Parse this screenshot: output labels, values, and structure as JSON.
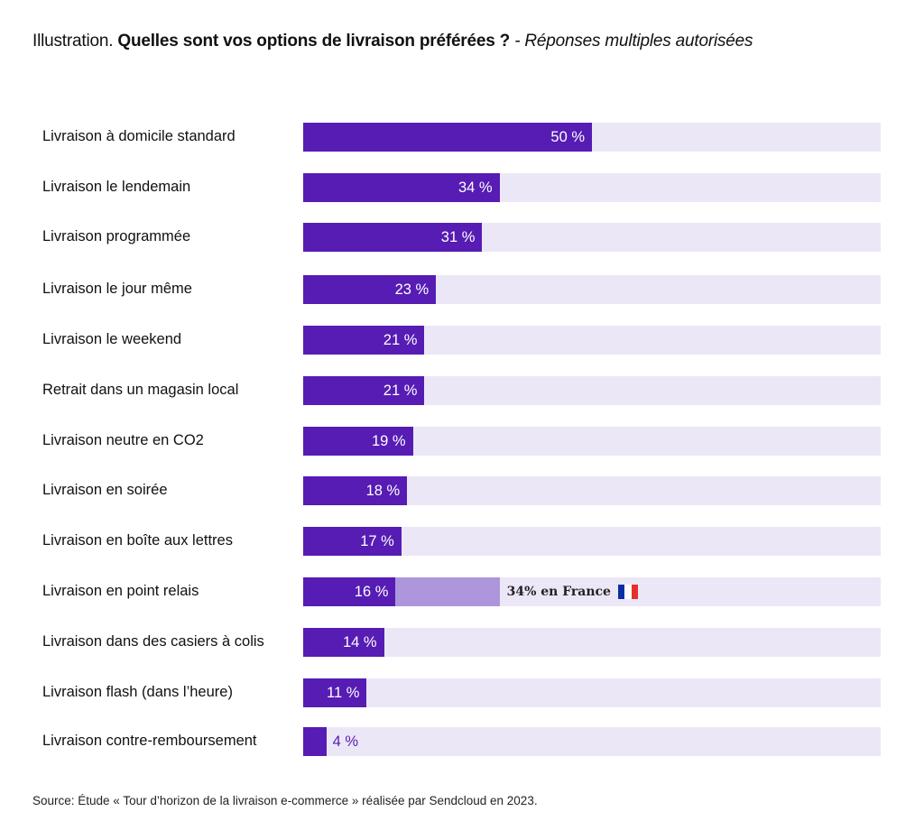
{
  "chart_data": {
    "type": "bar",
    "orientation": "horizontal",
    "title_prefix": "Illustration.",
    "title": "Quelles sont vos options de livraison préférées ?",
    "subtitle": "- Réponses multiples autorisées",
    "xlim": [
      0,
      100
    ],
    "value_suffix": " %",
    "categories": [
      "Livraison à domicile standard",
      "Livraison le lendemain",
      "Livraison programmée",
      "Livraison le jour même",
      "Livraison le weekend",
      "Retrait dans un magasin local",
      "Livraison neutre en CO2",
      "Livraison en soirée",
      "Livraison en boîte aux lettres",
      "Livraison en point relais",
      "Livraison dans des casiers à colis",
      "Livraison flash (dans l’heure)",
      "Livraison contre-remboursement"
    ],
    "values": [
      50,
      34,
      31,
      23,
      21,
      21,
      19,
      18,
      17,
      16,
      14,
      11,
      4
    ],
    "annotation": {
      "category": "Livraison en point relais",
      "value": 34,
      "text": "34% en France",
      "icon": "france-flag-icon"
    },
    "colors": {
      "bar": "#561cb4",
      "track": "#ece7f6",
      "france": "#ad96dc",
      "flag": [
        "#0a2fa5",
        "#ffffff",
        "#e5312b"
      ]
    },
    "source": "Source: Étude « Tour d’horizon de la livraison e-commerce » réalisée par Sendcloud en 2023."
  }
}
